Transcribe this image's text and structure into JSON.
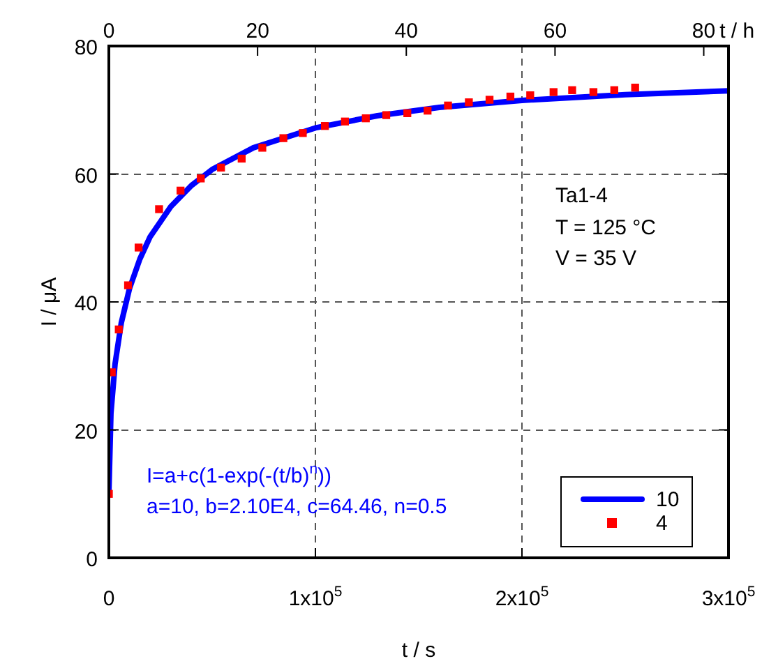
{
  "chart_data": {
    "type": "scatter",
    "xlabel": "t / s",
    "ylabel": "I / μA",
    "x2label": "t / h",
    "xlim": [
      0,
      300000
    ],
    "xticks": [
      0,
      {
        "value": 100000,
        "label": "1x10$^{5}$"
      },
      {
        "value": 200000,
        "label": "2x10$^{5}$"
      },
      {
        "value": 300000,
        "label": "3x10$^{5}$"
      }
    ],
    "x2lim": [
      0,
      83.33
    ],
    "x2ticks": [
      0,
      20,
      40,
      60,
      80
    ],
    "ylim": [
      0,
      80
    ],
    "yticks": [
      0,
      20,
      40,
      60,
      80
    ],
    "grid": true,
    "legend": "bottom right",
    "series": [
      {
        "name": "10",
        "type": "line",
        "color": "#0000ff",
        "marker": "none",
        "line_style": "solid",
        "x": [
          0,
          1000,
          3000,
          6000,
          10000,
          15000,
          20000,
          30000,
          40000,
          50000,
          70000,
          100000,
          130000,
          160000,
          200000,
          250000,
          300000
        ],
        "values": [
          10,
          22.6,
          30.3,
          36.7,
          42.1,
          46.7,
          50.2,
          54.9,
          58.2,
          60.7,
          64.1,
          67.2,
          69.1,
          70.4,
          71.5,
          72.4,
          73.0
        ]
      },
      {
        "name": "4",
        "type": "scatter",
        "color": "#ff0000",
        "marker": "square",
        "x": [
          0,
          1400,
          4800,
          9300,
          14400,
          24300,
          34700,
          44500,
          54300,
          64300,
          74300,
          84500,
          93900,
          104600,
          114300,
          124400,
          134300,
          144500,
          154300,
          164200,
          174300,
          184300,
          194400,
          204000,
          215300,
          224300,
          234600,
          244700,
          254800
        ],
        "values": [
          10,
          29,
          35.7,
          42.6,
          48.5,
          54.5,
          57.4,
          59.3,
          61.0,
          62.4,
          64.1,
          65.6,
          66.4,
          67.5,
          68.2,
          68.7,
          69.2,
          69.5,
          69.9,
          70.7,
          71.2,
          71.6,
          72.1,
          72.3,
          72.8,
          73.1,
          72.8,
          73.1,
          73.5
        ]
      }
    ],
    "annotations": [
      "Ta1-4",
      "T = 125 °C",
      "V = 35 V",
      "I=a+c(1-exp(-(t/b)$^{n}$))",
      "a=10, b=2.10E4, c=64.46, n=0.5"
    ]
  }
}
